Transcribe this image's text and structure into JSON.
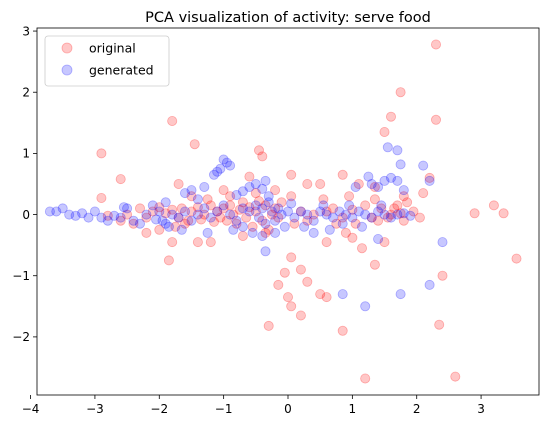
{
  "chart_data": {
    "type": "scatter",
    "title": "PCA visualization of activity: serve food",
    "xlabel": "",
    "ylabel": "",
    "xlim": [
      -3.9,
      3.9
    ],
    "ylim": [
      -2.95,
      3.05
    ],
    "xticks": [
      -4,
      -3,
      -2,
      -1,
      0,
      1,
      2,
      3
    ],
    "yticks": [
      -2,
      -1,
      0,
      1,
      2,
      3
    ],
    "xtick_labels": [
      "−4",
      "−3",
      "−2",
      "−1",
      "0",
      "1",
      "2",
      "3"
    ],
    "ytick_labels": [
      "−2",
      "−1",
      "0",
      "1",
      "2",
      "3"
    ],
    "grid": false,
    "legend_position": "upper left",
    "series": [
      {
        "name": "original",
        "color": "#ff0000",
        "alpha": 0.22,
        "points": [
          [
            2.3,
            2.78
          ],
          [
            1.75,
            2.0
          ],
          [
            2.3,
            1.55
          ],
          [
            1.6,
            1.6
          ],
          [
            1.5,
            1.35
          ],
          [
            -1.8,
            1.53
          ],
          [
            -0.45,
            1.05
          ],
          [
            -2.9,
            1.0
          ],
          [
            -1.45,
            1.15
          ],
          [
            -0.4,
            0.95
          ],
          [
            -2.6,
            0.58
          ],
          [
            -1.7,
            0.5
          ],
          [
            -2.9,
            0.27
          ],
          [
            0.85,
            0.65
          ],
          [
            1.1,
            0.5
          ],
          [
            1.35,
            0.45
          ],
          [
            0.05,
            0.65
          ],
          [
            0.3,
            0.5
          ],
          [
            0.5,
            0.5
          ],
          [
            -0.6,
            0.62
          ],
          [
            -0.2,
            0.4
          ],
          [
            0.05,
            0.3
          ],
          [
            0.55,
            0.25
          ],
          [
            0.95,
            0.3
          ],
          [
            2.2,
            0.6
          ],
          [
            1.8,
            0.3
          ],
          [
            2.1,
            0.35
          ],
          [
            -1.0,
            0.4
          ],
          [
            -1.5,
            0.3
          ],
          [
            2.9,
            0.02
          ],
          [
            3.2,
            0.15
          ],
          [
            3.35,
            0.02
          ],
          [
            3.55,
            -0.72
          ],
          [
            2.6,
            -2.65
          ],
          [
            2.35,
            -1.8
          ],
          [
            2.4,
            -1.0
          ],
          [
            1.2,
            -2.68
          ],
          [
            0.85,
            -1.9
          ],
          [
            1.35,
            -0.82
          ],
          [
            1.15,
            -0.55
          ],
          [
            0.9,
            -0.3
          ],
          [
            0.6,
            -0.45
          ],
          [
            0.3,
            -1.1
          ],
          [
            0.2,
            -1.65
          ],
          [
            0.0,
            -1.35
          ],
          [
            0.05,
            -1.5
          ],
          [
            -0.15,
            -1.15
          ],
          [
            0.05,
            -0.7
          ],
          [
            0.2,
            -0.9
          ],
          [
            -0.3,
            -1.82
          ],
          [
            -0.05,
            -0.95
          ],
          [
            -1.4,
            -0.45
          ],
          [
            -1.8,
            -0.45
          ],
          [
            -1.85,
            -0.75
          ],
          [
            -2.0,
            -0.25
          ],
          [
            -2.2,
            -0.3
          ],
          [
            -2.8,
            -0.02
          ],
          [
            -2.4,
            -0.15
          ],
          [
            -1.2,
            -0.45
          ],
          [
            -0.7,
            -0.35
          ],
          [
            0.5,
            -1.3
          ],
          [
            0.6,
            -1.35
          ],
          [
            1.0,
            -0.38
          ],
          [
            1.5,
            -0.45
          ],
          [
            0.1,
            -0.15
          ],
          [
            0.4,
            0.0
          ],
          [
            0.7,
            0.1
          ],
          [
            1.0,
            0.08
          ],
          [
            1.2,
            0.15
          ],
          [
            1.3,
            -0.05
          ],
          [
            1.45,
            0.1
          ],
          [
            1.55,
            -0.05
          ],
          [
            1.65,
            0.1
          ],
          [
            1.75,
            0.02
          ],
          [
            1.8,
            -0.1
          ],
          [
            1.7,
            0.15
          ],
          [
            1.6,
            0.0
          ],
          [
            1.4,
            -0.1
          ],
          [
            1.05,
            -0.15
          ],
          [
            0.85,
            -0.05
          ],
          [
            -1.9,
            0.02
          ],
          [
            -1.8,
            0.08
          ],
          [
            -1.7,
            -0.05
          ],
          [
            -1.65,
            0.1
          ],
          [
            -1.55,
            -0.1
          ],
          [
            -1.5,
            0.05
          ],
          [
            -1.4,
            0.12
          ],
          [
            -1.35,
            -0.08
          ],
          [
            -1.3,
            0.0
          ],
          [
            -1.2,
            0.15
          ],
          [
            -1.15,
            -0.12
          ],
          [
            -1.1,
            0.05
          ],
          [
            -1.05,
            -0.05
          ],
          [
            -1.0,
            0.1
          ],
          [
            -0.95,
            -0.1
          ],
          [
            -0.9,
            0.15
          ],
          [
            -0.85,
            0.0
          ],
          [
            -0.8,
            -0.15
          ],
          [
            -0.75,
            0.08
          ],
          [
            -0.7,
            0.2
          ],
          [
            -0.65,
            -0.05
          ],
          [
            -0.6,
            0.12
          ],
          [
            -0.55,
            -0.2
          ],
          [
            -0.5,
            0.05
          ],
          [
            -0.45,
            0.22
          ],
          [
            -0.4,
            -0.1
          ],
          [
            -0.35,
            0.15
          ],
          [
            -0.3,
            -0.25
          ],
          [
            -0.25,
            0.0
          ],
          [
            -0.2,
            0.1
          ],
          [
            -0.15,
            -0.05
          ],
          [
            -0.1,
            0.2
          ],
          [
            -2.1,
            0.05
          ],
          [
            -2.2,
            -0.05
          ],
          [
            -2.3,
            0.1
          ],
          [
            -2.0,
            0.12
          ],
          [
            -1.6,
            -0.15
          ],
          [
            -1.25,
            0.25
          ],
          [
            -0.9,
            0.3
          ],
          [
            -0.5,
            0.35
          ],
          [
            -1.75,
            -0.2
          ],
          [
            -0.35,
            -0.3
          ],
          [
            0.2,
            0.05
          ],
          [
            0.3,
            -0.1
          ],
          [
            0.6,
            0.05
          ],
          [
            0.75,
            -0.15
          ],
          [
            -2.5,
            0.0
          ],
          [
            -2.6,
            -0.1
          ],
          [
            1.95,
            0.05
          ],
          [
            2.05,
            -0.05
          ],
          [
            1.85,
            0.2
          ],
          [
            1.35,
            0.25
          ]
        ]
      },
      {
        "name": "generated",
        "color": "#0000ff",
        "alpha": 0.22,
        "points": [
          [
            -3.7,
            0.05
          ],
          [
            -3.6,
            0.05
          ],
          [
            -3.5,
            0.1
          ],
          [
            -3.4,
            0.0
          ],
          [
            -3.3,
            -0.02
          ],
          [
            -3.2,
            0.02
          ],
          [
            -3.1,
            -0.05
          ],
          [
            -3.0,
            0.05
          ],
          [
            -2.9,
            -0.05
          ],
          [
            -2.8,
            -0.1
          ],
          [
            -2.6,
            -0.05
          ],
          [
            -2.5,
            0.1
          ],
          [
            -2.4,
            -0.1
          ],
          [
            -2.2,
            0.0
          ],
          [
            -2.05,
            -0.08
          ],
          [
            -2.0,
            0.05
          ],
          [
            -1.95,
            -0.1
          ],
          [
            -1.9,
            -0.15
          ],
          [
            -1.8,
            0.0
          ],
          [
            -1.7,
            -0.05
          ],
          [
            -1.6,
            0.05
          ],
          [
            -1.5,
            -0.1
          ],
          [
            -1.4,
            0.0
          ],
          [
            -1.3,
            0.1
          ],
          [
            -1.2,
            -0.05
          ],
          [
            -1.1,
            0.05
          ],
          [
            -1.0,
            0.15
          ],
          [
            -0.9,
            0.0
          ],
          [
            -0.8,
            -0.1
          ],
          [
            -0.7,
            0.1
          ],
          [
            -0.6,
            0.05
          ],
          [
            -0.5,
            0.15
          ],
          [
            -0.45,
            -0.05
          ],
          [
            -0.4,
            0.1
          ],
          [
            -0.35,
            -0.15
          ],
          [
            -0.3,
            0.2
          ],
          [
            -0.25,
            0.05
          ],
          [
            -0.2,
            -0.1
          ],
          [
            -0.15,
            0.1
          ],
          [
            -0.1,
            0.0
          ],
          [
            0.0,
            0.05
          ],
          [
            0.1,
            -0.05
          ],
          [
            0.2,
            0.05
          ],
          [
            0.3,
            0.0
          ],
          [
            0.4,
            -0.1
          ],
          [
            0.5,
            0.05
          ],
          [
            0.6,
            0.0
          ],
          [
            0.7,
            -0.05
          ],
          [
            0.8,
            0.05
          ],
          [
            0.9,
            0.0
          ],
          [
            1.0,
            -0.05
          ],
          [
            1.1,
            0.05
          ],
          [
            1.2,
            0.0
          ],
          [
            1.3,
            -0.05
          ],
          [
            1.4,
            0.05
          ],
          [
            1.5,
            0.0
          ],
          [
            1.6,
            -0.05
          ],
          [
            1.7,
            0.0
          ],
          [
            1.8,
            0.02
          ],
          [
            1.9,
            -0.02
          ],
          [
            -1.15,
            0.65
          ],
          [
            -1.1,
            0.7
          ],
          [
            -1.0,
            0.9
          ],
          [
            -0.95,
            0.85
          ],
          [
            -0.9,
            0.8
          ],
          [
            -1.05,
            0.75
          ],
          [
            -0.7,
            0.38
          ],
          [
            -0.8,
            0.32
          ],
          [
            -0.6,
            0.45
          ],
          [
            -0.5,
            0.5
          ],
          [
            -0.4,
            0.42
          ],
          [
            -0.35,
            0.55
          ],
          [
            -0.3,
            0.3
          ],
          [
            -1.6,
            0.35
          ],
          [
            -1.5,
            0.4
          ],
          [
            -1.4,
            0.25
          ],
          [
            -1.3,
            0.45
          ],
          [
            1.25,
            0.62
          ],
          [
            1.3,
            0.5
          ],
          [
            1.4,
            0.45
          ],
          [
            1.5,
            0.55
          ],
          [
            1.6,
            0.6
          ],
          [
            1.7,
            0.55
          ],
          [
            1.8,
            0.4
          ],
          [
            2.1,
            0.8
          ],
          [
            2.2,
            0.55
          ],
          [
            1.55,
            1.1
          ],
          [
            1.7,
            1.05
          ],
          [
            1.75,
            0.82
          ],
          [
            1.05,
            0.45
          ],
          [
            0.85,
            -1.3
          ],
          [
            1.2,
            -1.5
          ],
          [
            1.75,
            -1.3
          ],
          [
            2.2,
            -1.15
          ],
          [
            2.4,
            -0.45
          ],
          [
            1.4,
            -0.4
          ],
          [
            0.65,
            -0.25
          ],
          [
            0.4,
            -0.3
          ],
          [
            0.25,
            -0.2
          ],
          [
            -0.55,
            -0.3
          ],
          [
            -0.85,
            -0.25
          ],
          [
            -1.25,
            -0.3
          ],
          [
            -0.35,
            -0.6
          ],
          [
            -0.4,
            -0.35
          ],
          [
            -0.2,
            -0.3
          ],
          [
            -1.65,
            -0.25
          ],
          [
            -1.85,
            -0.2
          ],
          [
            -0.7,
            -0.2
          ],
          [
            -2.3,
            -0.15
          ],
          [
            -2.1,
            0.15
          ],
          [
            -1.9,
            0.2
          ],
          [
            -2.7,
            -0.02
          ],
          [
            -2.55,
            0.12
          ],
          [
            0.95,
            0.15
          ],
          [
            1.45,
            0.15
          ],
          [
            0.55,
            0.15
          ],
          [
            0.05,
            0.18
          ],
          [
            -0.05,
            -0.2
          ],
          [
            0.85,
            -0.15
          ],
          [
            1.15,
            -0.2
          ]
        ]
      }
    ]
  }
}
